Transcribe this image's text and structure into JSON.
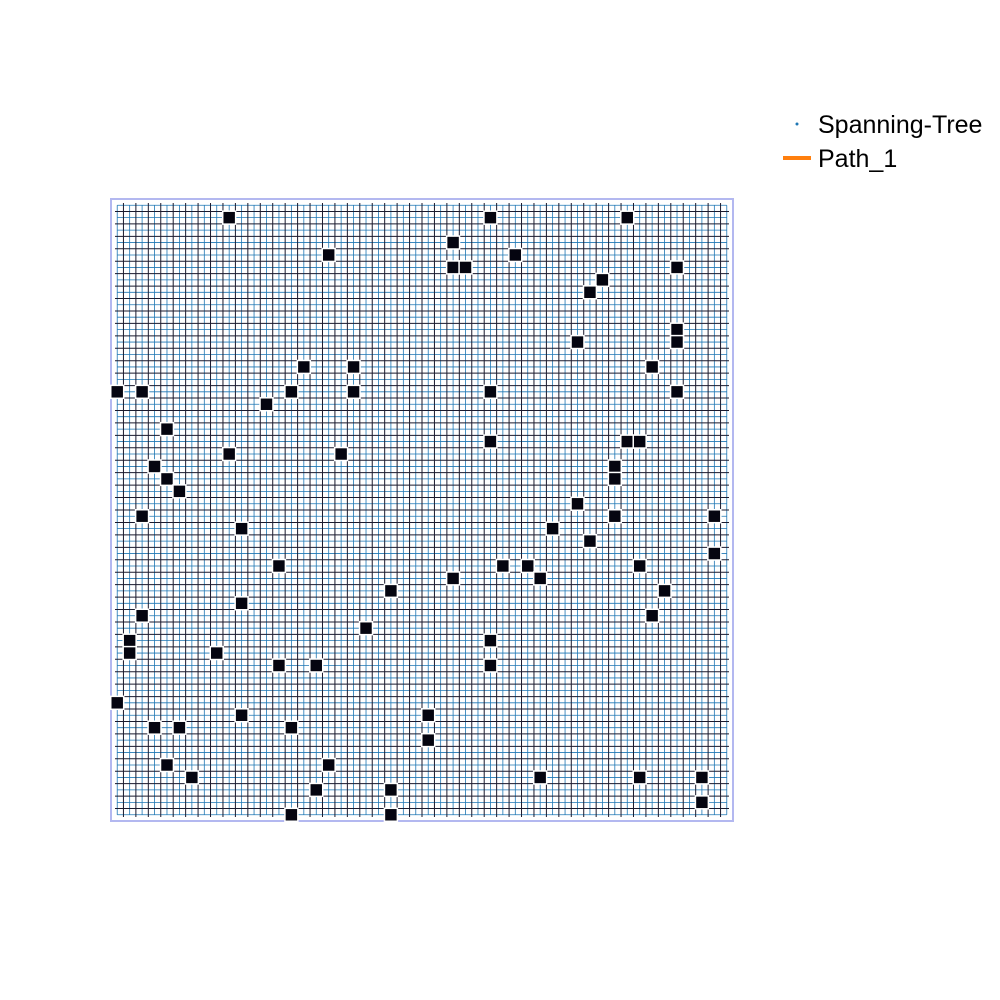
{
  "legend": {
    "items": [
      {
        "label": "Spanning-Tree",
        "marker": "dot",
        "color": "#1f77b4"
      },
      {
        "label": "Path_1",
        "marker": "line",
        "color": "#ff7f0e"
      }
    ]
  },
  "grid": {
    "columns": 50,
    "rows": 50,
    "outline_color": "#b3b8f0",
    "cell_edge_color": "#1a1a2e",
    "tree_color": "#1f77b4",
    "obstacle_color": "#050510",
    "obstacles": [
      [
        9,
        1
      ],
      [
        30,
        1
      ],
      [
        41,
        1
      ],
      [
        27,
        3
      ],
      [
        17,
        4
      ],
      [
        32,
        4
      ],
      [
        27,
        5
      ],
      [
        28,
        5
      ],
      [
        45,
        5
      ],
      [
        39,
        6
      ],
      [
        38,
        7
      ],
      [
        45,
        10
      ],
      [
        37,
        11
      ],
      [
        45,
        11
      ],
      [
        15,
        13
      ],
      [
        19,
        13
      ],
      [
        43,
        13
      ],
      [
        0,
        15
      ],
      [
        2,
        15
      ],
      [
        14,
        15
      ],
      [
        19,
        15
      ],
      [
        30,
        15
      ],
      [
        45,
        15
      ],
      [
        12,
        16
      ],
      [
        4,
        18
      ],
      [
        30,
        19
      ],
      [
        41,
        19
      ],
      [
        42,
        19
      ],
      [
        9,
        20
      ],
      [
        18,
        20
      ],
      [
        3,
        21
      ],
      [
        40,
        21
      ],
      [
        4,
        22
      ],
      [
        40,
        22
      ],
      [
        5,
        23
      ],
      [
        37,
        24
      ],
      [
        2,
        25
      ],
      [
        40,
        25
      ],
      [
        48,
        25
      ],
      [
        10,
        26
      ],
      [
        35,
        26
      ],
      [
        38,
        27
      ],
      [
        48,
        28
      ],
      [
        13,
        29
      ],
      [
        31,
        29
      ],
      [
        33,
        29
      ],
      [
        42,
        29
      ],
      [
        27,
        30
      ],
      [
        34,
        30
      ],
      [
        22,
        31
      ],
      [
        44,
        31
      ],
      [
        10,
        32
      ],
      [
        2,
        33
      ],
      [
        43,
        33
      ],
      [
        20,
        34
      ],
      [
        1,
        35
      ],
      [
        30,
        35
      ],
      [
        1,
        36
      ],
      [
        8,
        36
      ],
      [
        13,
        37
      ],
      [
        16,
        37
      ],
      [
        30,
        37
      ],
      [
        0,
        40
      ],
      [
        10,
        41
      ],
      [
        25,
        41
      ],
      [
        3,
        42
      ],
      [
        5,
        42
      ],
      [
        14,
        42
      ],
      [
        25,
        43
      ],
      [
        4,
        45
      ],
      [
        17,
        45
      ],
      [
        6,
        46
      ],
      [
        34,
        46
      ],
      [
        42,
        46
      ],
      [
        47,
        46
      ],
      [
        16,
        47
      ],
      [
        22,
        47
      ],
      [
        47,
        48
      ],
      [
        14,
        49
      ],
      [
        22,
        49
      ]
    ]
  }
}
